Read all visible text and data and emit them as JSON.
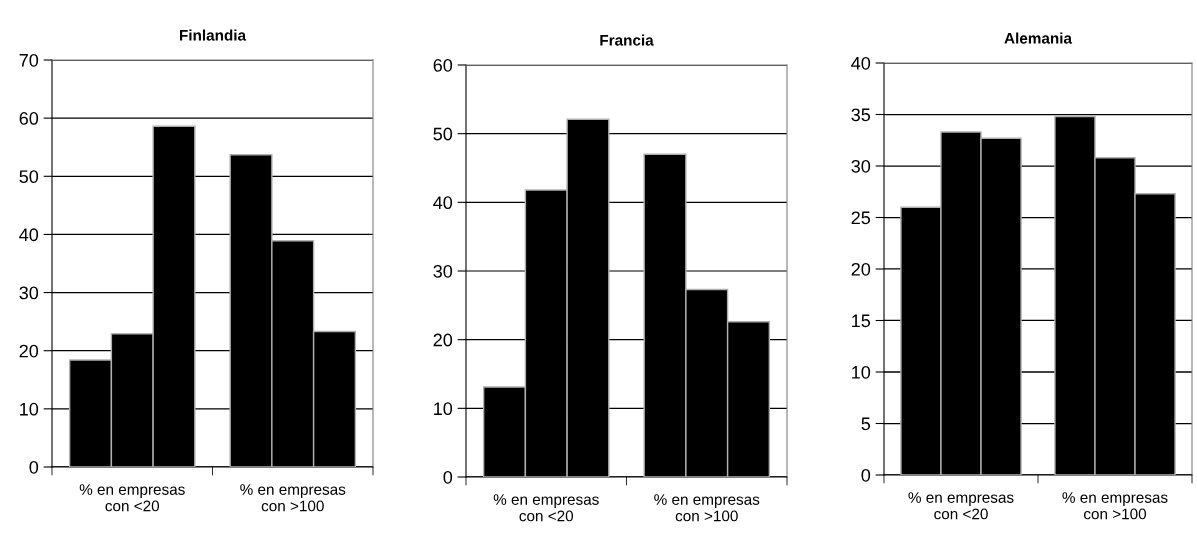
{
  "chart_data": [
    {
      "type": "bar",
      "title": "Finlandia",
      "categories": [
        "% en empresas\ncon <20",
        "% en empresas\ncon >100"
      ],
      "series": [
        {
          "color": "#000000",
          "values": [
            18.4,
            53.7
          ]
        },
        {
          "color": "#000000",
          "values": [
            22.9,
            38.9
          ]
        },
        {
          "color": "#000000",
          "values": [
            58.6,
            23.3
          ]
        }
      ],
      "ylim": [
        0,
        70
      ],
      "yticks": [
        0,
        10,
        20,
        30,
        40,
        50,
        60,
        70
      ],
      "grid": "y"
    },
    {
      "type": "bar",
      "title": "Francia",
      "categories": [
        "% en empresas\ncon <20",
        "% en empresas\ncon >100"
      ],
      "series": [
        {
          "color": "#000000",
          "values": [
            13.1,
            47.0
          ]
        },
        {
          "color": "#000000",
          "values": [
            41.8,
            27.3
          ]
        },
        {
          "color": "#000000",
          "values": [
            52.1,
            22.6
          ]
        }
      ],
      "ylim": [
        0,
        60
      ],
      "yticks": [
        0,
        10,
        20,
        30,
        40,
        50,
        60
      ],
      "grid": "y"
    },
    {
      "type": "bar",
      "title": "Alemania",
      "categories": [
        "% en empresas\ncon <20",
        "% en empresas\ncon >100"
      ],
      "series": [
        {
          "color": "#000000",
          "values": [
            26.0,
            34.8
          ]
        },
        {
          "color": "#000000",
          "values": [
            33.3,
            30.8
          ]
        },
        {
          "color": "#000000",
          "values": [
            32.7,
            27.3
          ]
        }
      ],
      "ylim": [
        0,
        40
      ],
      "yticks": [
        0,
        5,
        10,
        15,
        20,
        25,
        30,
        35,
        40
      ],
      "grid": "y"
    }
  ]
}
